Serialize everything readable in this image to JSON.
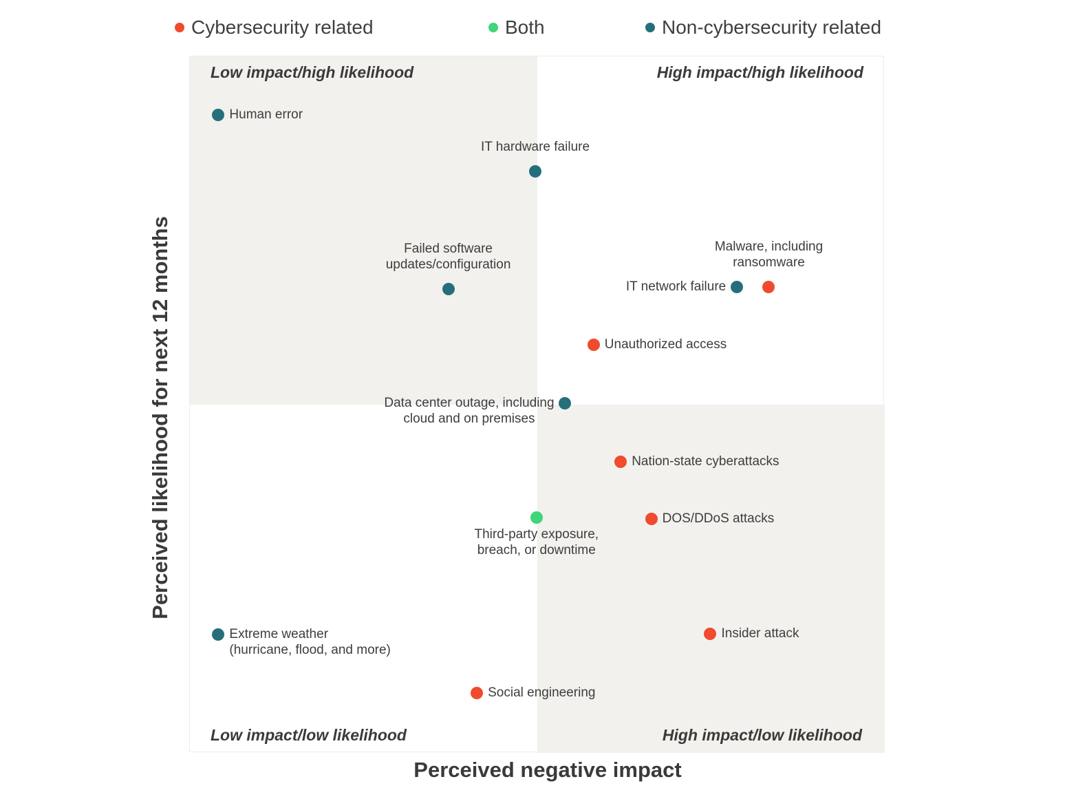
{
  "chart_data": {
    "type": "scatter",
    "title": "",
    "xlabel": "Perceived negative impact",
    "ylabel": "Perceived likelihood for next 12 months",
    "xlim": [
      0,
      100
    ],
    "ylim": [
      0,
      100
    ],
    "grid": false,
    "legend_position": "top",
    "legend": [
      {
        "key": "cyber",
        "label": "Cybersecurity related",
        "color": "#f04a2f"
      },
      {
        "key": "both",
        "label": "Both",
        "color": "#3fd57a"
      },
      {
        "key": "noncyber",
        "label": "Non-cybersecurity related",
        "color": "#256f7b"
      }
    ],
    "quadrants": [
      {
        "key": "tl",
        "label": "Low impact/high likelihood",
        "shaded": true
      },
      {
        "key": "tr",
        "label": "High impact/high likelihood",
        "shaded": false
      },
      {
        "key": "bl",
        "label": "Low impact/low likelihood",
        "shaded": false
      },
      {
        "key": "br",
        "label": "High impact/low likelihood",
        "shaded": true
      }
    ],
    "quadrant_split": {
      "x": 50,
      "y": 50
    },
    "shade_color": "#f2f1ee",
    "points": [
      {
        "label": "Human error",
        "category": "noncyber",
        "x": 4.1,
        "y": 91.6,
        "label_pos": "right"
      },
      {
        "label": "IT hardware failure",
        "category": "noncyber",
        "x": 49.7,
        "y": 83.5,
        "label_pos": "above"
      },
      {
        "label": "Failed software\nupdates/configuration",
        "category": "noncyber",
        "x": 37.2,
        "y": 66.6,
        "label_pos": "above"
      },
      {
        "label": "IT network failure",
        "category": "noncyber",
        "x": 78.7,
        "y": 66.9,
        "label_pos": "left"
      },
      {
        "label": "Malware, including\nransomware",
        "category": "cyber",
        "x": 83.3,
        "y": 66.9,
        "label_pos": "above"
      },
      {
        "label": "Unauthorized access",
        "category": "cyber",
        "x": 58.1,
        "y": 58.6,
        "label_pos": "right"
      },
      {
        "label": "Data center outage, including\ncloud and on premises",
        "category": "noncyber",
        "x": 54.0,
        "y": 50.2,
        "label_pos": "left"
      },
      {
        "label": "Nation-state cyberattacks",
        "category": "cyber",
        "x": 62.0,
        "y": 41.8,
        "label_pos": "right"
      },
      {
        "label": "Third-party exposure,\nbreach, or downtime",
        "category": "both",
        "x": 49.9,
        "y": 33.8,
        "label_pos": "below"
      },
      {
        "label": "DOS/DDoS attacks",
        "category": "cyber",
        "x": 66.4,
        "y": 33.6,
        "label_pos": "right"
      },
      {
        "label": "Extreme weather\n(hurricane, flood, and more)",
        "category": "noncyber",
        "x": 4.1,
        "y": 17.0,
        "label_pos": "right"
      },
      {
        "label": "Insider attack",
        "category": "cyber",
        "x": 74.9,
        "y": 17.1,
        "label_pos": "right"
      },
      {
        "label": "Social engineering",
        "category": "cyber",
        "x": 41.3,
        "y": 8.6,
        "label_pos": "right"
      }
    ]
  }
}
